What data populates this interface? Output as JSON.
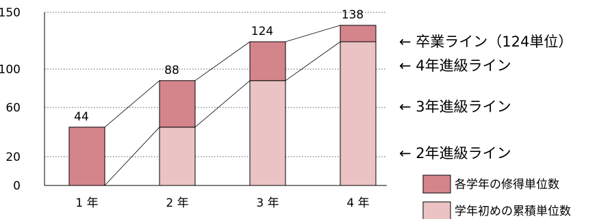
{
  "chart_data": {
    "type": "bar",
    "stacked": true,
    "categories": [
      "1 年",
      "2 年",
      "3 年",
      "4 年"
    ],
    "series": [
      {
        "name": "学年初めの累積単位数",
        "values": [
          0,
          44,
          88,
          124
        ],
        "color": "#ebc3c4"
      },
      {
        "name": "各学年の修得単位数",
        "values": [
          44,
          44,
          36,
          14
        ],
        "color": "#d4858b"
      }
    ],
    "totals": [
      44,
      88,
      124,
      138
    ],
    "y_ticks": [
      0,
      20,
      60,
      100,
      150
    ],
    "ylim": [
      0,
      150
    ],
    "reference_lines": [
      {
        "value": 124,
        "label": "← 卒業ライン（124単位）"
      },
      {
        "value": 100,
        "label": "← 4年進級ライン"
      },
      {
        "value": 60,
        "label": "← 3年進級ライン"
      },
      {
        "value": 20,
        "label": "← 2年進級ライン"
      }
    ],
    "legend_position": "bottom-right",
    "grid": "dotted reference lines"
  }
}
